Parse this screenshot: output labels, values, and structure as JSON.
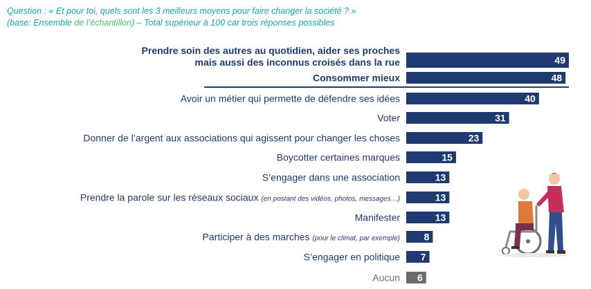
{
  "header": {
    "question": "Question : « Et pour toi, quels sont les 3 meilleurs moyens pour faire changer la société ? »",
    "base_prefix": "(base: Ensemble ",
    "base_highlight": "de l’échantillon",
    "base_suffix": ") – Total supérieur à 100 car trois réponses possibles"
  },
  "colors": {
    "bar": "#1f3a6e",
    "bar_last": "#6b6b6b",
    "label_bold": "#1f3a6e",
    "label": "#1f3a6e",
    "label_last": "#6b6b6b",
    "question": "#1aa7a0",
    "highlight_line": "#1f3a6e"
  },
  "chart_data": {
    "type": "bar",
    "orientation": "horizontal",
    "categories": [
      {
        "label": "Prendre soin des autres au quotidien, aider ses proches",
        "label2": "mais aussi des inconnus croisés dans la rue",
        "note": "",
        "bold": true
      },
      {
        "label": "Consommer mieux",
        "label2": "",
        "note": "",
        "bold": true
      },
      {
        "label": "Avoir un métier qui permette de défendre ses idées",
        "label2": "",
        "note": "",
        "bold": false
      },
      {
        "label": "Voter",
        "label2": "",
        "note": "",
        "bold": false
      },
      {
        "label": "Donner de l’argent aux associations qui agissent pour changer les choses",
        "label2": "",
        "note": "",
        "bold": false
      },
      {
        "label": "Boycotter certaines marques",
        "label2": "",
        "note": "",
        "bold": false
      },
      {
        "label": "S’engager dans une association",
        "label2": "",
        "note": "",
        "bold": false
      },
      {
        "label": "Prendre la parole sur les réseaux sociaux",
        "label2": "",
        "note": "(en postant des vidéos, photos, messages…)",
        "bold": false
      },
      {
        "label": "Manifester",
        "label2": "",
        "note": "",
        "bold": false
      },
      {
        "label": "Participer à des marches",
        "label2": "",
        "note": "(pour le climat, par exemple)",
        "bold": false
      },
      {
        "label": "S’engager en politique",
        "label2": "",
        "note": "",
        "bold": false
      },
      {
        "label": "Aucun",
        "label2": "",
        "note": "",
        "bold": false,
        "grey": true
      }
    ],
    "values": [
      49,
      48,
      40,
      31,
      23,
      15,
      13,
      13,
      13,
      8,
      7,
      6
    ],
    "xlim": [
      0,
      49
    ]
  }
}
